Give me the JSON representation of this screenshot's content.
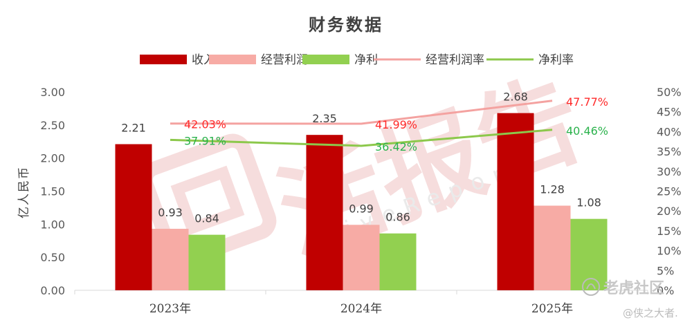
{
  "chart_data": {
    "type": "bar",
    "title": "财务数据",
    "categories": [
      "2023年",
      "2024年",
      "2025年"
    ],
    "ylabel": "亿人民币",
    "ylim": [
      0,
      3
    ],
    "y_ticks": [
      "0.00",
      "0.50",
      "1.00",
      "1.50",
      "2.00",
      "2.50",
      "3.00"
    ],
    "y2lim": [
      0,
      50
    ],
    "y2_ticks": [
      "0%",
      "5%",
      "10%",
      "15%",
      "20%",
      "25%",
      "30%",
      "35%",
      "40%",
      "45%",
      "50%"
    ],
    "grid": false,
    "legend_position": "top",
    "series": [
      {
        "name": "收入",
        "type": "bar",
        "axis": "left",
        "color": "#c00000",
        "values": [
          2.21,
          2.35,
          2.68
        ],
        "labels": [
          "2.21",
          "2.35",
          "2.68"
        ]
      },
      {
        "name": "经营利润",
        "type": "bar",
        "axis": "left",
        "color": "#f7aba5",
        "values": [
          0.93,
          0.99,
          1.28
        ],
        "labels": [
          "0.93",
          "0.99",
          "1.28"
        ]
      },
      {
        "name": "净利",
        "type": "bar",
        "axis": "left",
        "color": "#92d050",
        "values": [
          0.84,
          0.86,
          1.08
        ],
        "labels": [
          "0.84",
          "0.86",
          "1.08"
        ]
      },
      {
        "name": "经营利润率",
        "type": "line",
        "axis": "right",
        "color": "#f4a2a0",
        "label_color": "#ff2a2a",
        "values": [
          42.03,
          41.99,
          47.77
        ],
        "labels": [
          "42.03%",
          "41.99%",
          "47.77%"
        ]
      },
      {
        "name": "净利率",
        "type": "line",
        "axis": "right",
        "color": "#8cc84b",
        "label_color": "#2bb24c",
        "values": [
          37.91,
          36.42,
          40.46
        ],
        "labels": [
          "37.91%",
          "36.42%",
          "40.46%"
        ]
      }
    ]
  },
  "watermark": {
    "text": "活报告",
    "subtext": "LiveReport"
  },
  "footer_watermark": {
    "brand": "老虎社区",
    "handle": "@侠之大者."
  }
}
